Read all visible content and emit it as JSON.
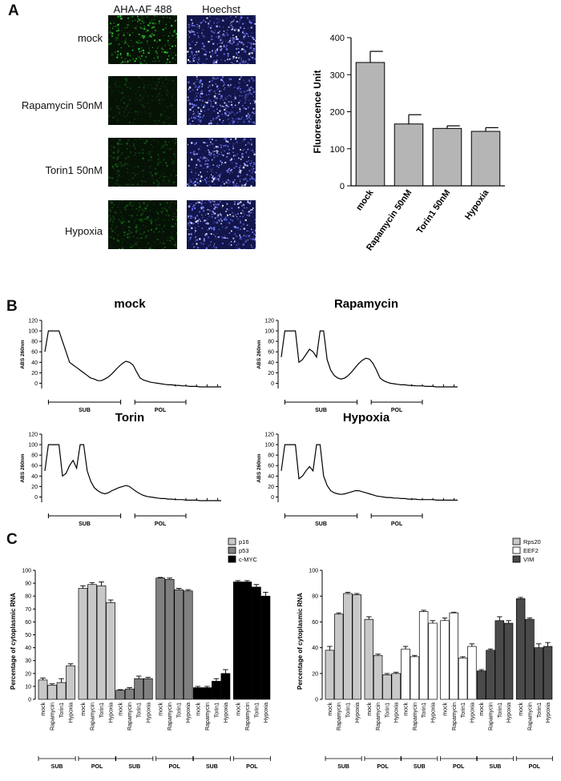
{
  "panel_a": {
    "letter": "A",
    "column_headers": [
      "AHA-AF 488",
      "Hoechst"
    ],
    "row_labels": [
      "mock",
      "Rapamycin 50nM",
      "Torin1 50nM",
      "Hypoxia"
    ],
    "green_brightness": [
      1.0,
      0.35,
      0.45,
      0.55
    ]
  },
  "panel_b": {
    "letter": "B"
  },
  "panel_c": {
    "letter": "C"
  },
  "chart_data": [
    {
      "type": "bar",
      "categories": [
        "mock",
        "Rapamycin 50nM",
        "Torin1 50nM",
        "Hypoxia"
      ],
      "values": [
        333,
        167,
        155,
        147
      ],
      "errors": [
        30,
        25,
        7,
        10
      ],
      "ylabel": "Fluorescence Unit",
      "ylim": [
        0,
        400
      ],
      "yticks": [
        0,
        100,
        200,
        300,
        400
      ],
      "bar_color": "#b5b5b5"
    },
    {
      "type": "line",
      "title": "mock",
      "ylabel": "ABS 260nm",
      "ylim": [
        -10,
        120
      ],
      "yticks": [
        0,
        20,
        40,
        60,
        80,
        100,
        120
      ],
      "x": [
        0,
        2,
        4,
        6,
        8,
        10,
        12,
        14,
        16,
        18,
        20,
        22,
        24,
        26,
        28,
        30,
        32,
        34,
        36,
        38,
        40,
        42,
        44,
        46,
        48,
        50,
        52,
        54,
        56,
        58,
        60,
        62,
        64,
        66,
        68,
        70,
        72,
        74,
        76,
        78,
        80,
        82,
        84,
        86,
        88,
        90,
        92,
        94,
        96,
        98,
        100
      ],
      "y": [
        60,
        100,
        100,
        100,
        100,
        80,
        60,
        40,
        35,
        30,
        25,
        20,
        15,
        10,
        8,
        5,
        5,
        8,
        12,
        18,
        25,
        32,
        38,
        42,
        40,
        35,
        22,
        10,
        6,
        4,
        2,
        1,
        0,
        -1,
        -2,
        -3,
        -3,
        -4,
        -4,
        -5,
        -5,
        -6,
        -6,
        -6,
        -7,
        -7,
        -7,
        -7,
        -7,
        -7,
        -7
      ],
      "regions": [
        "SUB",
        "POL"
      ]
    },
    {
      "type": "line",
      "title": "Rapamycin",
      "ylabel": "ABS 260nm",
      "ylim": [
        -10,
        120
      ],
      "yticks": [
        0,
        20,
        40,
        60,
        80,
        100,
        120
      ],
      "x": [
        0,
        2,
        4,
        6,
        8,
        10,
        12,
        14,
        16,
        18,
        20,
        22,
        24,
        26,
        28,
        30,
        32,
        34,
        36,
        38,
        40,
        42,
        44,
        46,
        48,
        50,
        52,
        54,
        56,
        58,
        60,
        62,
        64,
        66,
        68,
        70,
        72,
        74,
        76,
        78,
        80,
        82,
        84,
        86,
        88,
        90,
        92,
        94,
        96,
        98,
        100
      ],
      "y": [
        50,
        100,
        100,
        100,
        100,
        40,
        45,
        55,
        65,
        60,
        50,
        100,
        100,
        45,
        25,
        15,
        10,
        8,
        10,
        15,
        22,
        30,
        38,
        44,
        48,
        46,
        38,
        25,
        10,
        5,
        2,
        0,
        -1,
        -2,
        -3,
        -3,
        -4,
        -4,
        -5,
        -5,
        -5,
        -6,
        -6,
        -6,
        -7,
        -7,
        -7,
        -7,
        -7,
        -7,
        -7
      ],
      "regions": [
        "SUB",
        "POL"
      ]
    },
    {
      "type": "line",
      "title": "Torin",
      "ylabel": "ABS 260nm",
      "ylim": [
        -10,
        120
      ],
      "yticks": [
        0,
        20,
        40,
        60,
        80,
        100,
        120
      ],
      "x": [
        0,
        2,
        4,
        6,
        8,
        10,
        12,
        14,
        16,
        18,
        20,
        22,
        24,
        26,
        28,
        30,
        32,
        34,
        36,
        38,
        40,
        42,
        44,
        46,
        48,
        50,
        52,
        54,
        56,
        58,
        60,
        62,
        64,
        66,
        68,
        70,
        72,
        74,
        76,
        78,
        80,
        82,
        84,
        86,
        88,
        90,
        92,
        94,
        96,
        98,
        100
      ],
      "y": [
        50,
        100,
        100,
        100,
        100,
        40,
        45,
        60,
        70,
        55,
        100,
        100,
        50,
        30,
        18,
        12,
        8,
        6,
        8,
        12,
        15,
        18,
        20,
        22,
        20,
        15,
        10,
        6,
        3,
        1,
        0,
        -1,
        -2,
        -3,
        -3,
        -4,
        -4,
        -5,
        -5,
        -5,
        -6,
        -6,
        -6,
        -6,
        -7,
        -7,
        -7,
        -7,
        -7,
        -7,
        -7
      ],
      "regions": [
        "SUB",
        "POL"
      ]
    },
    {
      "type": "line",
      "title": "Hypoxia",
      "ylabel": "ABS 260nm",
      "ylim": [
        -10,
        120
      ],
      "yticks": [
        0,
        20,
        40,
        60,
        80,
        100,
        120
      ],
      "x": [
        0,
        2,
        4,
        6,
        8,
        10,
        12,
        14,
        16,
        18,
        20,
        22,
        24,
        26,
        28,
        30,
        32,
        34,
        36,
        38,
        40,
        42,
        44,
        46,
        48,
        50,
        52,
        54,
        56,
        58,
        60,
        62,
        64,
        66,
        68,
        70,
        72,
        74,
        76,
        78,
        80,
        82,
        84,
        86,
        88,
        90,
        92,
        94,
        96,
        98,
        100
      ],
      "y": [
        50,
        100,
        100,
        100,
        100,
        35,
        40,
        50,
        58,
        50,
        100,
        100,
        40,
        22,
        12,
        8,
        6,
        5,
        6,
        8,
        10,
        12,
        12,
        10,
        8,
        6,
        4,
        2,
        1,
        0,
        -1,
        -1,
        -2,
        -2,
        -3,
        -3,
        -4,
        -4,
        -4,
        -5,
        -5,
        -5,
        -5,
        -5,
        -6,
        -6,
        -6,
        -6,
        -6,
        -6,
        -6
      ],
      "regions": [
        "SUB",
        "POL"
      ]
    },
    {
      "type": "bar",
      "ylabel": "Percentage of cytoplasmic RNA",
      "ylim": [
        0,
        100
      ],
      "yticks": [
        0,
        10,
        20,
        30,
        40,
        50,
        60,
        70,
        80,
        90,
        100
      ],
      "legend_position": "top-right",
      "categories": [
        "mock",
        "Rapamycin",
        "Torin1",
        "Hypoxia",
        "mock",
        "Rapamycin",
        "Torin1",
        "Hypoxia"
      ],
      "group_labels": [
        "SUB",
        "POL"
      ],
      "series": [
        {
          "name": "p16",
          "color": "#c8c8c8",
          "values": [
            15,
            11,
            13,
            26,
            86,
            89,
            88,
            75
          ],
          "errors": [
            1.5,
            1,
            3,
            1.5,
            2,
            1.5,
            3,
            2
          ]
        },
        {
          "name": "p53",
          "color": "#808080",
          "values": [
            7,
            8,
            16,
            16,
            94,
            93,
            85,
            84
          ],
          "errors": [
            0.5,
            1,
            2,
            1,
            0.5,
            1,
            1,
            1
          ]
        },
        {
          "name": "c-MYC",
          "color": "#000000",
          "values": [
            9,
            9,
            14,
            20,
            91,
            91,
            87,
            80
          ],
          "errors": [
            1,
            1,
            2,
            3,
            1,
            1,
            2,
            3
          ]
        }
      ]
    },
    {
      "type": "bar",
      "ylabel": "Percentage of cytoplasmic RNA",
      "ylim": [
        0,
        100
      ],
      "yticks": [
        0,
        20,
        40,
        60,
        80,
        100
      ],
      "legend_position": "top-right",
      "categories": [
        "mock",
        "Rapamycin",
        "Torin1",
        "Hypoxia",
        "mock",
        "Rapamycin",
        "Torin1",
        "Hypoxia"
      ],
      "group_labels": [
        "SUB",
        "POL"
      ],
      "series": [
        {
          "name": "Rps20",
          "color": "#c8c8c8",
          "values": [
            38,
            66,
            82,
            81,
            62,
            34,
            19,
            20
          ],
          "errors": [
            3,
            1,
            1,
            1,
            2,
            1,
            1,
            1
          ]
        },
        {
          "name": "EEF2",
          "color": "#ffffff",
          "values": [
            39,
            33,
            68,
            59,
            61,
            67,
            32,
            41
          ],
          "errors": [
            2,
            1,
            1,
            2,
            2,
            0.5,
            1,
            2
          ]
        },
        {
          "name": "VIM",
          "color": "#4a4a4a",
          "values": [
            22,
            38,
            61,
            59,
            78,
            62,
            40,
            41
          ],
          "errors": [
            1,
            1,
            3,
            2,
            1,
            1,
            3,
            3
          ]
        }
      ]
    }
  ]
}
